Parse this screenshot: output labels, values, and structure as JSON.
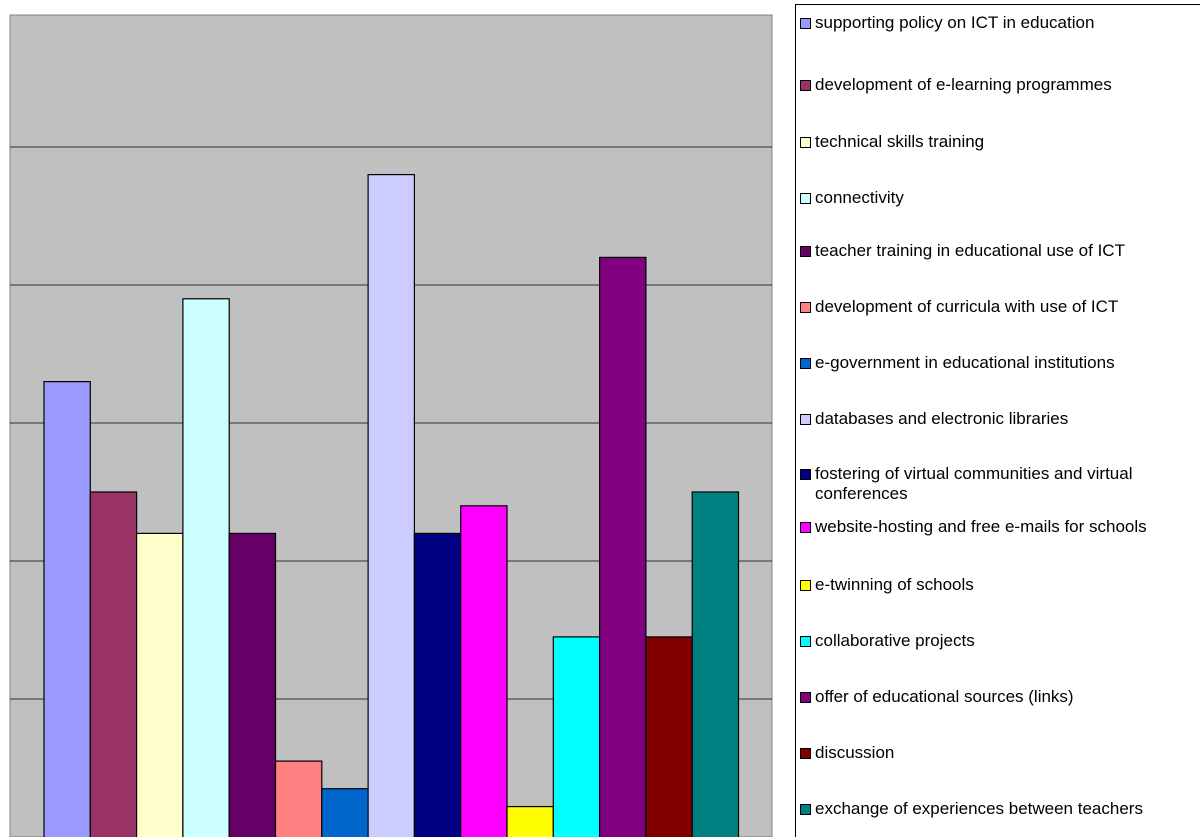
{
  "chart_data": {
    "type": "bar",
    "ylim": [
      0,
      6
    ],
    "grid": true,
    "legend_position": "right",
    "series": [
      {
        "name": "supporting policy on ICT in education",
        "value": 3.3,
        "color": "#9999FF"
      },
      {
        "name": "development of e-learning programmes",
        "value": 2.5,
        "color": "#993366"
      },
      {
        "name": "technical skills training",
        "value": 2.2,
        "color": "#FFFFCC"
      },
      {
        "name": "connectivity",
        "value": 3.9,
        "color": "#CCFFFF"
      },
      {
        "name": "teacher training in educational use of ICT",
        "value": 2.2,
        "color": "#660066"
      },
      {
        "name": "development of curricula with use of ICT",
        "value": 0.55,
        "color": "#FF8080"
      },
      {
        "name": "e-government in educational institutions",
        "value": 0.35,
        "color": "#0066CC"
      },
      {
        "name": "databases and electronic libraries",
        "value": 4.8,
        "color": "#CCCCFF"
      },
      {
        "name": "fostering of virtual communities and virtual conferences",
        "value": 2.2,
        "color": "#000080"
      },
      {
        "name": "website-hosting and free e-mails for schools",
        "value": 2.4,
        "color": "#FF00FF"
      },
      {
        "name": "e-twinning of schools",
        "value": 0.22,
        "color": "#FFFF00"
      },
      {
        "name": "collaborative projects",
        "value": 1.45,
        "color": "#00FFFF"
      },
      {
        "name": "offer of educational sources (links)",
        "value": 4.2,
        "color": "#800080"
      },
      {
        "name": "discussion",
        "value": 1.45,
        "color": "#800000"
      },
      {
        "name": "exchange of experiences between teachers",
        "value": 2.5,
        "color": "#008080"
      }
    ]
  },
  "legend": {
    "items": [
      {
        "label": "supporting policy on ICT in education",
        "color": "#9999FF"
      },
      {
        "label": "development of e-learning programmes",
        "color": "#993366"
      },
      {
        "label": "technical skills training",
        "color": "#FFFFCC"
      },
      {
        "label": "connectivity",
        "color": "#CCFFFF"
      },
      {
        "label": "teacher training in educational use of ICT",
        "color": "#660066"
      },
      {
        "label": "development of curricula with use of ICT",
        "color": "#FF8080"
      },
      {
        "label": "e-government in educational institutions",
        "color": "#0066CC"
      },
      {
        "label": "databases and electronic libraries",
        "color": "#CCCCFF"
      },
      {
        "label": "fostering of virtual communities and virtual conferences",
        "color": "#000080"
      },
      {
        "label": "website-hosting and free e-mails for schools",
        "color": "#FF00FF"
      },
      {
        "label": "e-twinning of schools",
        "color": "#FFFF00"
      },
      {
        "label": "collaborative projects",
        "color": "#00FFFF"
      },
      {
        "label": "offer of educational sources (links)",
        "color": "#800080"
      },
      {
        "label": "discussion",
        "color": "#800000"
      },
      {
        "label": "exchange of experiences between teachers",
        "color": "#008080"
      }
    ]
  },
  "colors": {
    "plot_background": "#C0C0C0",
    "gridline": "#000000"
  }
}
